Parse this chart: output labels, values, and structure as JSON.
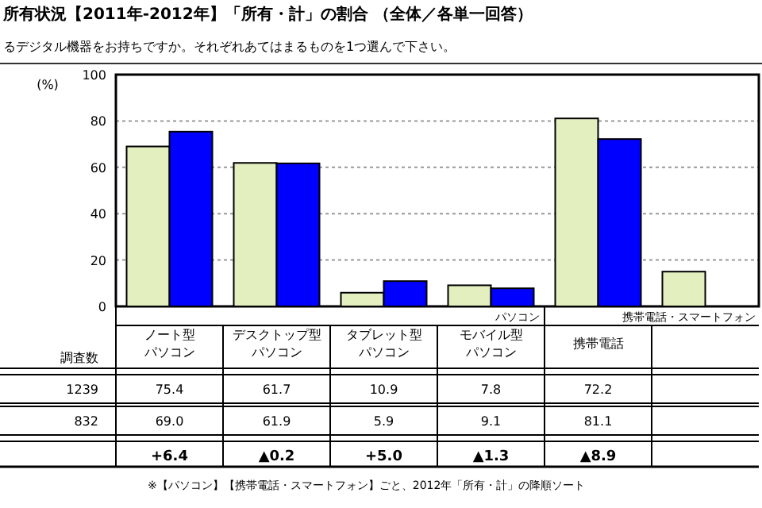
{
  "chart_data": {
    "type": "bar",
    "title": "所有状況【2011年-2012年】「所有・計」の割合 （全体／各単一回答）",
    "subtitle": "るデジタル機器をお持ちですか。それぞれあてはまるものを1つ選んで下さい。",
    "ylabel": "(%)",
    "categories": [
      "ノート型パソコン",
      "デスクトップ型パソコン",
      "タブレット型パソコン",
      "モバイル型パソコン",
      "携帯電話",
      null
    ],
    "series": [
      {
        "color": "#e4efc0",
        "values": [
          69.0,
          61.9,
          5.9,
          9.1,
          81.1,
          15
        ],
        "value_labels": [
          "69.0",
          "61.9",
          "5.9",
          "9.1",
          "81.1",
          null
        ]
      },
      {
        "color": "#0000ff",
        "values": [
          75.4,
          61.7,
          10.9,
          7.8,
          72.2,
          null
        ],
        "value_labels": [
          "75.4",
          "61.7",
          "10.9",
          "7.8",
          "72.2",
          null
        ]
      }
    ],
    "ylim": [
      0,
      100
    ],
    "yticks": [
      0,
      20,
      40,
      60,
      80,
      100
    ],
    "grid": "y",
    "annotations": [
      "調査数",
      "1239",
      "832",
      "+6.4",
      "▲0.2",
      "+5.0",
      "▲1.3",
      "▲8.9",
      "パソコン",
      "携帯電話・スマートフォン",
      "※【パソコン】【携帯電話・スマートフォン】ごと、2012年「所有・計」の降順ソート"
    ]
  }
}
